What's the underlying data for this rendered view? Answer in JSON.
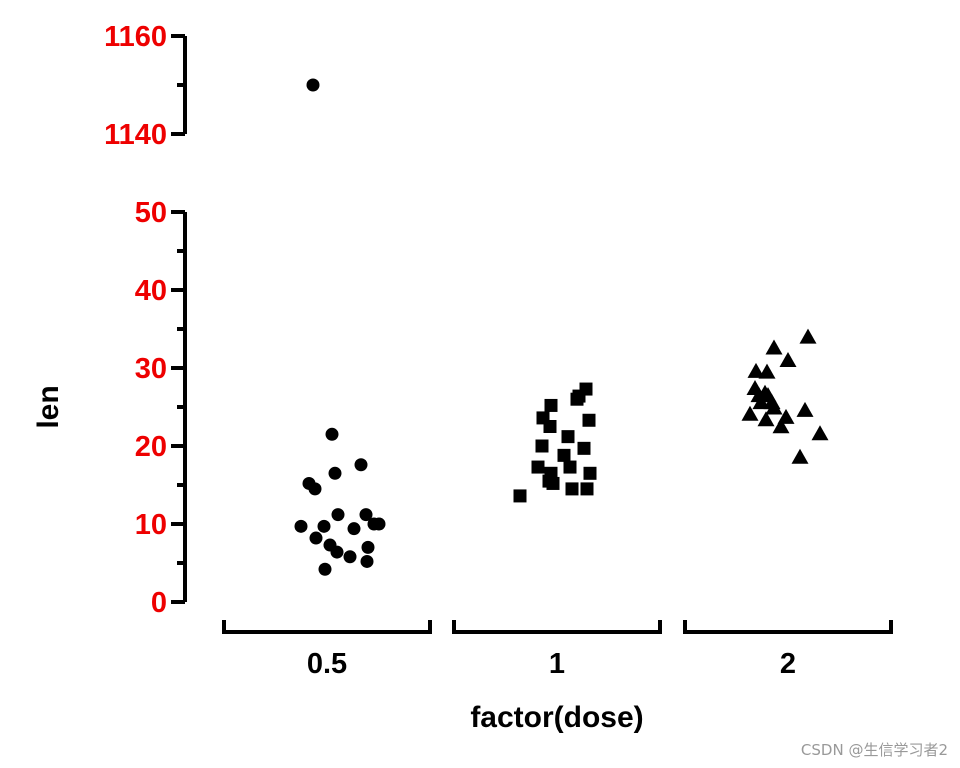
{
  "chart_data": {
    "type": "scatter",
    "subtype": "jitter strip plot with broken y-axis",
    "title": "",
    "xlabel": "factor(dose)",
    "ylabel": "len",
    "categories": [
      "0.5",
      "1",
      "2"
    ],
    "y_segments": [
      {
        "range": [
          0,
          50
        ],
        "ticks": [
          "0",
          "10",
          "20",
          "30",
          "40",
          "50"
        ]
      },
      {
        "range": [
          1140,
          1160
        ],
        "ticks": [
          "1140",
          "1160"
        ]
      }
    ],
    "grid": false,
    "legend": "none",
    "colors": {
      "tick_label": "#ee0000",
      "marks": "#000000",
      "axis": "#000000"
    },
    "series": [
      {
        "category": "0.5",
        "marker": "circle",
        "points": [
          {
            "j": -0.26,
            "y": 9.7
          },
          {
            "j": -0.18,
            "y": 15.2
          },
          {
            "j": -0.12,
            "y": 14.5
          },
          {
            "j": -0.11,
            "y": 8.2
          },
          {
            "j": -0.03,
            "y": 9.7
          },
          {
            "j": -0.02,
            "y": 4.2
          },
          {
            "j": 0.03,
            "y": 7.3
          },
          {
            "j": 0.05,
            "y": 21.5
          },
          {
            "j": 0.08,
            "y": 16.5
          },
          {
            "j": 0.1,
            "y": 6.4
          },
          {
            "j": 0.11,
            "y": 11.2
          },
          {
            "j": 0.23,
            "y": 5.8
          },
          {
            "j": 0.27,
            "y": 9.4
          },
          {
            "j": 0.34,
            "y": 17.6
          },
          {
            "j": 0.39,
            "y": 11.2
          },
          {
            "j": 0.4,
            "y": 5.2
          },
          {
            "j": 0.41,
            "y": 7.0
          },
          {
            "j": 0.47,
            "y": 10.0
          },
          {
            "j": 0.52,
            "y": 10.0
          },
          {
            "j": -0.14,
            "y": 1150
          }
        ]
      },
      {
        "category": "1",
        "marker": "square",
        "points": [
          {
            "j": -0.37,
            "y": 13.6
          },
          {
            "j": -0.19,
            "y": 17.3
          },
          {
            "j": -0.15,
            "y": 20.0
          },
          {
            "j": -0.14,
            "y": 23.6
          },
          {
            "j": -0.08,
            "y": 15.5
          },
          {
            "j": -0.07,
            "y": 22.5
          },
          {
            "j": -0.06,
            "y": 25.2
          },
          {
            "j": -0.06,
            "y": 16.5
          },
          {
            "j": -0.04,
            "y": 15.2
          },
          {
            "j": 0.07,
            "y": 18.8
          },
          {
            "j": 0.11,
            "y": 21.2
          },
          {
            "j": 0.13,
            "y": 17.3
          },
          {
            "j": 0.15,
            "y": 14.5
          },
          {
            "j": 0.2,
            "y": 26.0
          },
          {
            "j": 0.22,
            "y": 26.4
          },
          {
            "j": 0.27,
            "y": 19.7
          },
          {
            "j": 0.29,
            "y": 27.3
          },
          {
            "j": 0.3,
            "y": 14.5
          },
          {
            "j": 0.32,
            "y": 23.3
          },
          {
            "j": 0.33,
            "y": 16.5
          }
        ]
      },
      {
        "category": "2",
        "marker": "triangle",
        "points": [
          {
            "j": -0.38,
            "y": 24.0
          },
          {
            "j": -0.33,
            "y": 27.3
          },
          {
            "j": -0.32,
            "y": 29.5
          },
          {
            "j": -0.29,
            "y": 26.4
          },
          {
            "j": -0.27,
            "y": 25.5
          },
          {
            "j": -0.23,
            "y": 26.7
          },
          {
            "j": -0.22,
            "y": 23.3
          },
          {
            "j": -0.21,
            "y": 29.4
          },
          {
            "j": -0.2,
            "y": 26.4
          },
          {
            "j": -0.16,
            "y": 25.5
          },
          {
            "j": -0.14,
            "y": 24.8
          },
          {
            "j": -0.14,
            "y": 32.5
          },
          {
            "j": -0.07,
            "y": 22.4
          },
          {
            "j": -0.02,
            "y": 23.6
          },
          {
            "j": 0.0,
            "y": 30.9
          },
          {
            "j": 0.12,
            "y": 18.5
          },
          {
            "j": 0.17,
            "y": 24.5
          },
          {
            "j": 0.2,
            "y": 33.9
          },
          {
            "j": 0.32,
            "y": 21.5
          }
        ]
      }
    ]
  },
  "watermark": "CSDN @生信学习者2"
}
